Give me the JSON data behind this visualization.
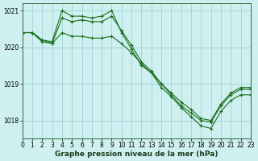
{
  "title": "Graphe pression niveau de la mer (hPa)",
  "bg_color": "#cff0f0",
  "grid_color": "#99cccc",
  "line_color": "#1a6e1a",
  "x_min": 0,
  "x_max": 23,
  "y_min": 1017.5,
  "y_max": 1021.2,
  "yticks": [
    1018,
    1019,
    1020,
    1021
  ],
  "xticks": [
    0,
    1,
    2,
    3,
    4,
    5,
    6,
    7,
    8,
    9,
    10,
    11,
    12,
    13,
    14,
    15,
    16,
    17,
    18,
    19,
    20,
    21,
    22,
    23
  ],
  "line1_x": [
    0,
    1,
    2,
    3,
    4,
    5,
    6,
    7,
    8,
    9,
    10,
    11,
    12,
    13,
    14,
    15,
    16,
    17,
    18,
    19,
    20,
    21,
    22,
    23
  ],
  "line1_y": [
    1020.4,
    1020.4,
    1020.2,
    1020.15,
    1021.0,
    1020.85,
    1020.85,
    1020.8,
    1020.85,
    1021.0,
    1020.4,
    1019.95,
    1019.5,
    1019.3,
    1018.9,
    1018.65,
    1018.35,
    1018.1,
    1017.85,
    1017.78,
    1018.25,
    1018.55,
    1018.7,
    1018.7
  ],
  "line2_x": [
    0,
    1,
    2,
    3,
    4,
    5,
    6,
    7,
    8,
    9,
    10,
    11,
    12,
    13,
    14,
    15,
    16,
    17,
    18,
    19,
    20,
    21,
    22,
    23
  ],
  "line2_y": [
    1020.4,
    1020.4,
    1020.15,
    1020.1,
    1020.8,
    1020.7,
    1020.75,
    1020.7,
    1020.7,
    1020.85,
    1020.45,
    1020.05,
    1019.6,
    1019.35,
    1019.0,
    1018.7,
    1018.4,
    1018.2,
    1018.0,
    1017.95,
    1018.4,
    1018.7,
    1018.85,
    1018.85
  ],
  "line3_x": [
    0,
    1,
    2,
    3,
    4,
    5,
    6,
    7,
    8,
    9,
    10,
    11,
    12,
    13,
    14,
    15,
    16,
    17,
    18,
    19,
    20,
    21,
    22,
    23
  ],
  "line3_y": [
    1020.4,
    1020.4,
    1020.2,
    1020.1,
    1020.4,
    1020.3,
    1020.3,
    1020.25,
    1020.25,
    1020.3,
    1020.1,
    1019.85,
    1019.55,
    1019.3,
    1019.0,
    1018.75,
    1018.5,
    1018.3,
    1018.05,
    1018.0,
    1018.45,
    1018.75,
    1018.9,
    1018.9
  ],
  "font_size_label": 6.5,
  "font_size_tick": 5.5
}
